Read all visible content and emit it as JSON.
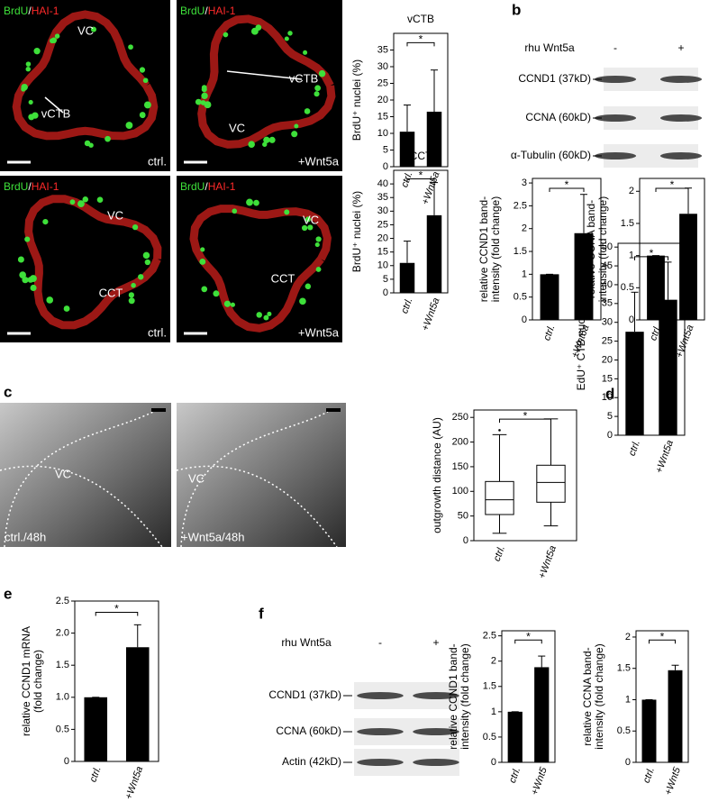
{
  "panel_labels": [
    "a",
    "b",
    "c",
    "d",
    "e",
    "f"
  ],
  "micrographs": [
    {
      "stain": [
        "BrdU",
        "/",
        "HAI-1"
      ],
      "labels": [
        "VC",
        "vCTB",
        "ctrl."
      ]
    },
    {
      "stain": [
        "BrdU",
        "/",
        "HAI-1"
      ],
      "labels": [
        "VC",
        "vCTB",
        "+Wnt5a"
      ]
    },
    {
      "stain": [
        "BrdU",
        "/",
        "HAI-1"
      ],
      "labels": [
        "VC",
        "CCT",
        "ctrl."
      ]
    },
    {
      "stain": [
        "BrdU",
        "/",
        "HAI-1"
      ],
      "labels": [
        "VC",
        "CCT",
        "+Wnt5a"
      ]
    },
    {
      "labels": [
        "VC",
        "ctrl./48h"
      ]
    },
    {
      "labels": [
        "VC",
        "+Wnt5a/48h"
      ]
    }
  ],
  "blots": [
    {
      "treatment_label": "rhu Wnt5a",
      "conditions": [
        "-",
        "+"
      ],
      "rows": [
        "CCND1 (37kD)",
        "CCNA (60kD)",
        "α-Tubulin (60kD)"
      ]
    },
    {
      "treatment_label": "rhu Wnt5a",
      "conditions": [
        "-",
        "+"
      ],
      "rows": [
        "CCND1 (37kD)",
        "CCNA (60kD)",
        "Actin (42kD)"
      ]
    }
  ],
  "chart_data": [
    {
      "type": "bar",
      "title": "vCTB",
      "y_label": [
        "BrdU⁺ nuclei (%)"
      ],
      "categories": [
        "ctrl.",
        "+Wnt5a"
      ],
      "values": [
        10.5,
        16.5
      ],
      "errors": [
        8,
        12.5
      ],
      "ylim": [
        0,
        40
      ],
      "yticks": [
        0,
        5,
        10,
        15,
        20,
        25,
        30,
        35
      ],
      "annotation": "*",
      "color": "#000000"
    },
    {
      "type": "bar",
      "title": "CCT",
      "y_label": [
        "BrdU⁺ nuclei (%)"
      ],
      "categories": [
        "ctrl.",
        "+Wnt5a"
      ],
      "values": [
        11,
        28.5
      ],
      "errors": [
        8,
        12
      ],
      "ylim": [
        0,
        45
      ],
      "yticks": [
        0,
        5,
        10,
        15,
        20,
        25,
        30,
        35,
        40
      ],
      "annotation": "*",
      "color": "#000000"
    },
    {
      "type": "bar",
      "y_label": [
        "relative CCND1 band-",
        "intensity (fold change)"
      ],
      "categories": [
        "ctrl.",
        "+Wnt5a"
      ],
      "values": [
        1,
        1.9
      ],
      "errors": [
        0,
        0.85
      ],
      "ylim": [
        0,
        3.1
      ],
      "yticks": [
        0,
        0.5,
        1,
        1.5,
        2,
        2.5,
        3
      ],
      "annotation": "*",
      "color": "#000000"
    },
    {
      "type": "bar",
      "y_label": [
        "relative CCNA band-",
        "intensity (fold change)"
      ],
      "categories": [
        "ctrl.",
        "+Wnt5a"
      ],
      "values": [
        1,
        1.65
      ],
      "errors": [
        0,
        0.4
      ],
      "ylim": [
        0,
        2.2
      ],
      "yticks": [
        0,
        0.5,
        1,
        1.5,
        2
      ],
      "annotation": "*",
      "color": "#000000"
    },
    {
      "type": "box",
      "y_label": [
        "outgrowth distance (AU)"
      ],
      "categories": [
        "ctrl.",
        "+Wnt5a"
      ],
      "whisker_low": [
        15,
        30
      ],
      "q1": [
        53,
        78
      ],
      "median": [
        83,
        118
      ],
      "q3": [
        120,
        153
      ],
      "whisker_high": [
        215,
        247
      ],
      "outliers": [
        [
          224
        ],
        []
      ],
      "ylim": [
        0,
        265
      ],
      "yticks": [
        0,
        50,
        100,
        150,
        200,
        250
      ],
      "annotation": "*",
      "color": "#000000"
    },
    {
      "type": "bar",
      "y_label": [
        "EdU⁺ CTB nuclei (%)"
      ],
      "categories": [
        "ctrl.",
        "+Wnt5a"
      ],
      "values": [
        27.5,
        36
      ],
      "errors": [
        10.5,
        10
      ],
      "ylim": [
        0,
        51
      ],
      "yticks": [
        0,
        5,
        10,
        15,
        20,
        25,
        30,
        35,
        40,
        45,
        50
      ],
      "annotation": "*",
      "color": "#000000"
    },
    {
      "type": "bar",
      "y_label": [
        "relative CCND1 mRNA",
        "(fold change)"
      ],
      "categories": [
        "ctrl.",
        "+Wnt5a"
      ],
      "values": [
        1,
        1.78
      ],
      "errors": [
        0,
        0.35
      ],
      "ylim": [
        0,
        2.5
      ],
      "yticks": [
        0,
        0.5,
        {
          "value": 1,
          "label": "1.0"
        },
        1.5,
        {
          "value": 2,
          "label": "2.0"
        },
        2.5
      ],
      "annotation": "*",
      "color": "#000000"
    },
    {
      "type": "bar",
      "y_label": [
        "relative CCND1 band-",
        "intensity (fold change)"
      ],
      "categories": [
        "ctrl.",
        "+Wnt5"
      ],
      "values": [
        1,
        1.88
      ],
      "errors": [
        0,
        0.22
      ],
      "ylim": [
        0,
        2.6
      ],
      "yticks": [
        0,
        0.5,
        1,
        1.5,
        2,
        2.5
      ],
      "annotation": "*",
      "color": "#000000"
    },
    {
      "type": "bar",
      "y_label": [
        "relative CCNA band-",
        "intensity (fold change)"
      ],
      "categories": [
        "ctrl.",
        "+Wnt5"
      ],
      "values": [
        1,
        1.47
      ],
      "errors": [
        0,
        0.08
      ],
      "ylim": [
        0,
        2.1
      ],
      "yticks": [
        0,
        0.5,
        1,
        1.5,
        2
      ],
      "annotation": "*",
      "color": "#000000"
    }
  ]
}
